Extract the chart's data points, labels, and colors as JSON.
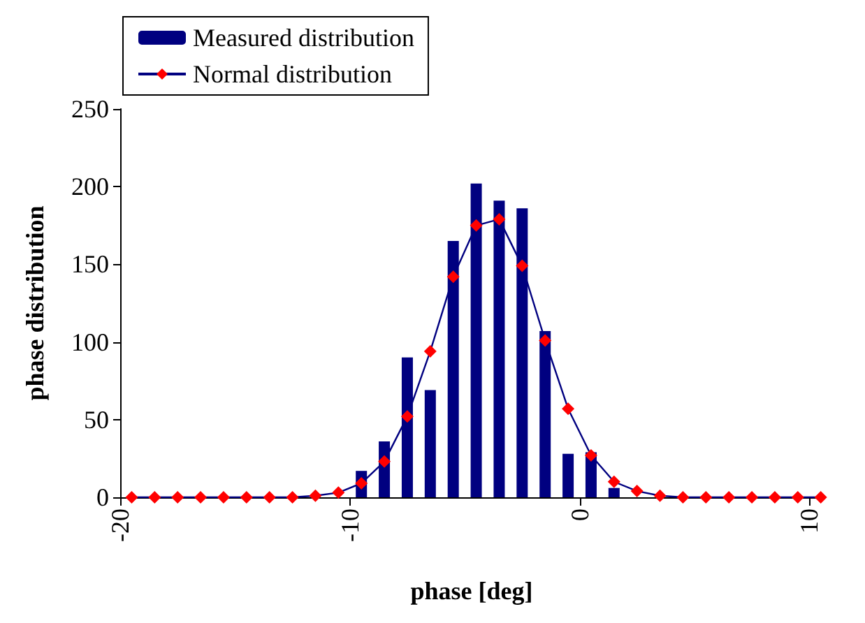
{
  "chart_data": {
    "type": "bar",
    "xlabel": "phase [deg]",
    "ylabel": "phase distribution",
    "x": [
      -19.5,
      -18.5,
      -17.5,
      -16.5,
      -15.5,
      -14.5,
      -13.5,
      -12.5,
      -11.5,
      -10.5,
      -9.5,
      -8.5,
      -7.5,
      -6.5,
      -5.5,
      -4.5,
      -3.5,
      -2.5,
      -1.5,
      -0.5,
      0.5,
      1.5,
      2.5,
      3.5,
      4.5,
      5.5,
      6.5,
      7.5,
      8.5,
      9.5,
      10.5
    ],
    "series": [
      {
        "name": "Measured distribution",
        "color": "#000080",
        "values": [
          0,
          0,
          0,
          0,
          0,
          0,
          0,
          0,
          0,
          0,
          17,
          36,
          90,
          69,
          165,
          202,
          191,
          186,
          107,
          28,
          29,
          6,
          0,
          0,
          0,
          0,
          0,
          0,
          0,
          0,
          0
        ]
      },
      {
        "name": "Normal distribution",
        "type": "line",
        "color": "#ff0000",
        "marker": "diamond",
        "line_style": "solid",
        "values": [
          0,
          0,
          0,
          0,
          0,
          0,
          0,
          0,
          1,
          3,
          9,
          23,
          52,
          94,
          142,
          175,
          179,
          149,
          101,
          57,
          27,
          10,
          4,
          1,
          0,
          0,
          0,
          0,
          0,
          0,
          0
        ]
      }
    ],
    "xlim": [
      -20,
      10.6
    ],
    "xticks": [
      -20,
      -10,
      0,
      10
    ],
    "ylim": [
      0,
      250
    ],
    "yticks": [
      0,
      50,
      100,
      150,
      200,
      250
    ],
    "grid": false,
    "legend": "top left"
  }
}
